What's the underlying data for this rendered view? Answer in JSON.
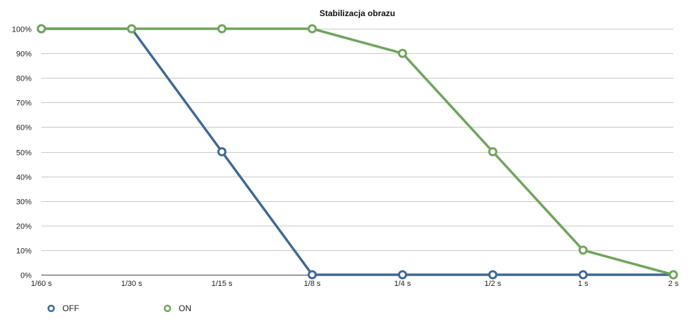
{
  "chart_data": {
    "type": "line",
    "title": "Stabilizacja obrazu",
    "xlabel": "",
    "ylabel": "",
    "categories": [
      "1/60 s",
      "1/30 s",
      "1/15 s",
      "1/8 s",
      "1/4 s",
      "1/2 s",
      "1 s",
      "2 s"
    ],
    "y_ticks": [
      "0%",
      "10%",
      "20%",
      "30%",
      "40%",
      "50%",
      "60%",
      "70%",
      "80%",
      "90%",
      "100%"
    ],
    "ylim": [
      0,
      100
    ],
    "grid": true,
    "legend_position": "bottom-left",
    "series": [
      {
        "name": "OFF",
        "color": "#3f6995",
        "values": [
          100,
          100,
          50,
          0,
          0,
          0,
          0,
          0
        ]
      },
      {
        "name": "ON",
        "color": "#6ea55a",
        "values": [
          100,
          100,
          100,
          100,
          90,
          50,
          10,
          0
        ]
      }
    ]
  }
}
